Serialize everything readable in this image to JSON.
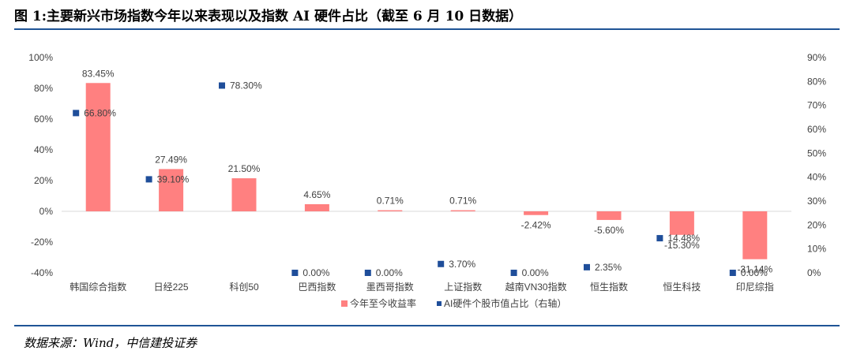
{
  "title": "图 1:主要新兴市场指数今年以来表现以及指数 AI 硬件占比（截至 6 月 10 日数据）",
  "source": "数据来源：Wind，中信建投证券",
  "chart_data": {
    "type": "bar",
    "categories": [
      "韩国综合指数",
      "日经225",
      "科创50",
      "巴西指数",
      "墨西哥指数",
      "上证指数",
      "越南VN30指数",
      "恒生指数",
      "恒生科技",
      "印尼综指"
    ],
    "series": [
      {
        "name": "今年至今收益率",
        "type": "bar",
        "axis": "left",
        "color": "#ff8080",
        "values": [
          83.45,
          27.49,
          21.5,
          4.65,
          0.71,
          0.71,
          -2.42,
          -5.6,
          -15.3,
          -31.14
        ],
        "labels": [
          "83.45%",
          "27.49%",
          "21.50%",
          "4.65%",
          "0.71%",
          "0.71%",
          "-2.42%",
          "-5.60%",
          "-15.30%",
          "-31.14%"
        ]
      },
      {
        "name": "AI硬件个股市值占比（右轴）",
        "type": "scatter",
        "axis": "right",
        "color": "#1f4e9a",
        "values": [
          66.8,
          39.1,
          78.3,
          0.0,
          0.0,
          3.7,
          0.0,
          2.35,
          14.48,
          0.0
        ],
        "labels": [
          "66.80%",
          "39.10%",
          "78.30%",
          "0.00%",
          "0.00%",
          "3.70%",
          "0.00%",
          "2.35%",
          "14.48%",
          "0.00%"
        ]
      }
    ],
    "y_left": {
      "lim": [
        -40,
        100
      ],
      "ticks": [
        -40,
        -20,
        0,
        20,
        40,
        60,
        80,
        100
      ],
      "tick_labels": [
        "-40%",
        "-20%",
        "0%",
        "20%",
        "40%",
        "60%",
        "80%",
        "100%"
      ]
    },
    "y_right": {
      "lim": [
        0,
        90
      ],
      "ticks": [
        0,
        10,
        20,
        30,
        40,
        50,
        60,
        70,
        80,
        90
      ],
      "tick_labels": [
        "0%",
        "10%",
        "20%",
        "30%",
        "40%",
        "50%",
        "60%",
        "70%",
        "80%",
        "90%"
      ]
    },
    "grid": false,
    "legend": "bottom-center",
    "legend_labels": [
      "今年至今收益率",
      "AI硬件个股市值占比（右轴）"
    ]
  }
}
